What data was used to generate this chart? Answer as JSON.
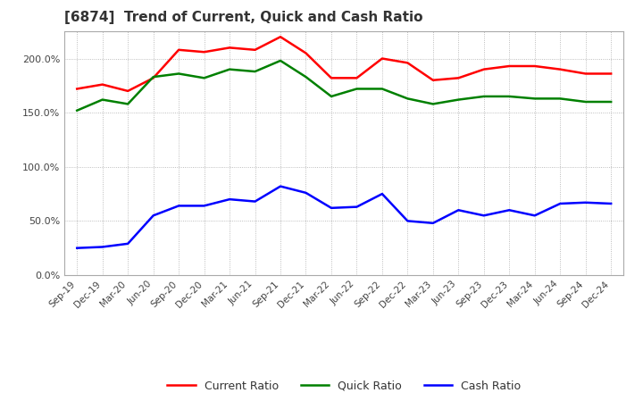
{
  "title": "[6874]  Trend of Current, Quick and Cash Ratio",
  "x_labels": [
    "Sep-19",
    "Dec-19",
    "Mar-20",
    "Jun-20",
    "Sep-20",
    "Dec-20",
    "Mar-21",
    "Jun-21",
    "Sep-21",
    "Dec-21",
    "Mar-22",
    "Jun-22",
    "Sep-22",
    "Dec-22",
    "Mar-23",
    "Jun-23",
    "Sep-23",
    "Dec-23",
    "Mar-24",
    "Jun-24",
    "Sep-24",
    "Dec-24"
  ],
  "current_ratio": [
    172,
    176,
    170,
    182,
    208,
    206,
    210,
    208,
    220,
    205,
    182,
    182,
    200,
    196,
    180,
    182,
    190,
    193,
    193,
    190,
    186,
    186
  ],
  "quick_ratio": [
    152,
    162,
    158,
    183,
    186,
    182,
    190,
    188,
    198,
    183,
    165,
    172,
    172,
    163,
    158,
    162,
    165,
    165,
    163,
    163,
    160,
    160
  ],
  "cash_ratio": [
    25,
    26,
    29,
    55,
    64,
    64,
    70,
    68,
    82,
    76,
    62,
    63,
    75,
    50,
    48,
    60,
    55,
    60,
    55,
    66,
    67,
    66
  ],
  "current_color": "#ff0000",
  "quick_color": "#008000",
  "cash_color": "#0000ff",
  "ylim": [
    0,
    225
  ],
  "yticks": [
    0,
    50,
    100,
    150,
    200
  ],
  "background_color": "#ffffff",
  "grid_color": "#aaaaaa"
}
